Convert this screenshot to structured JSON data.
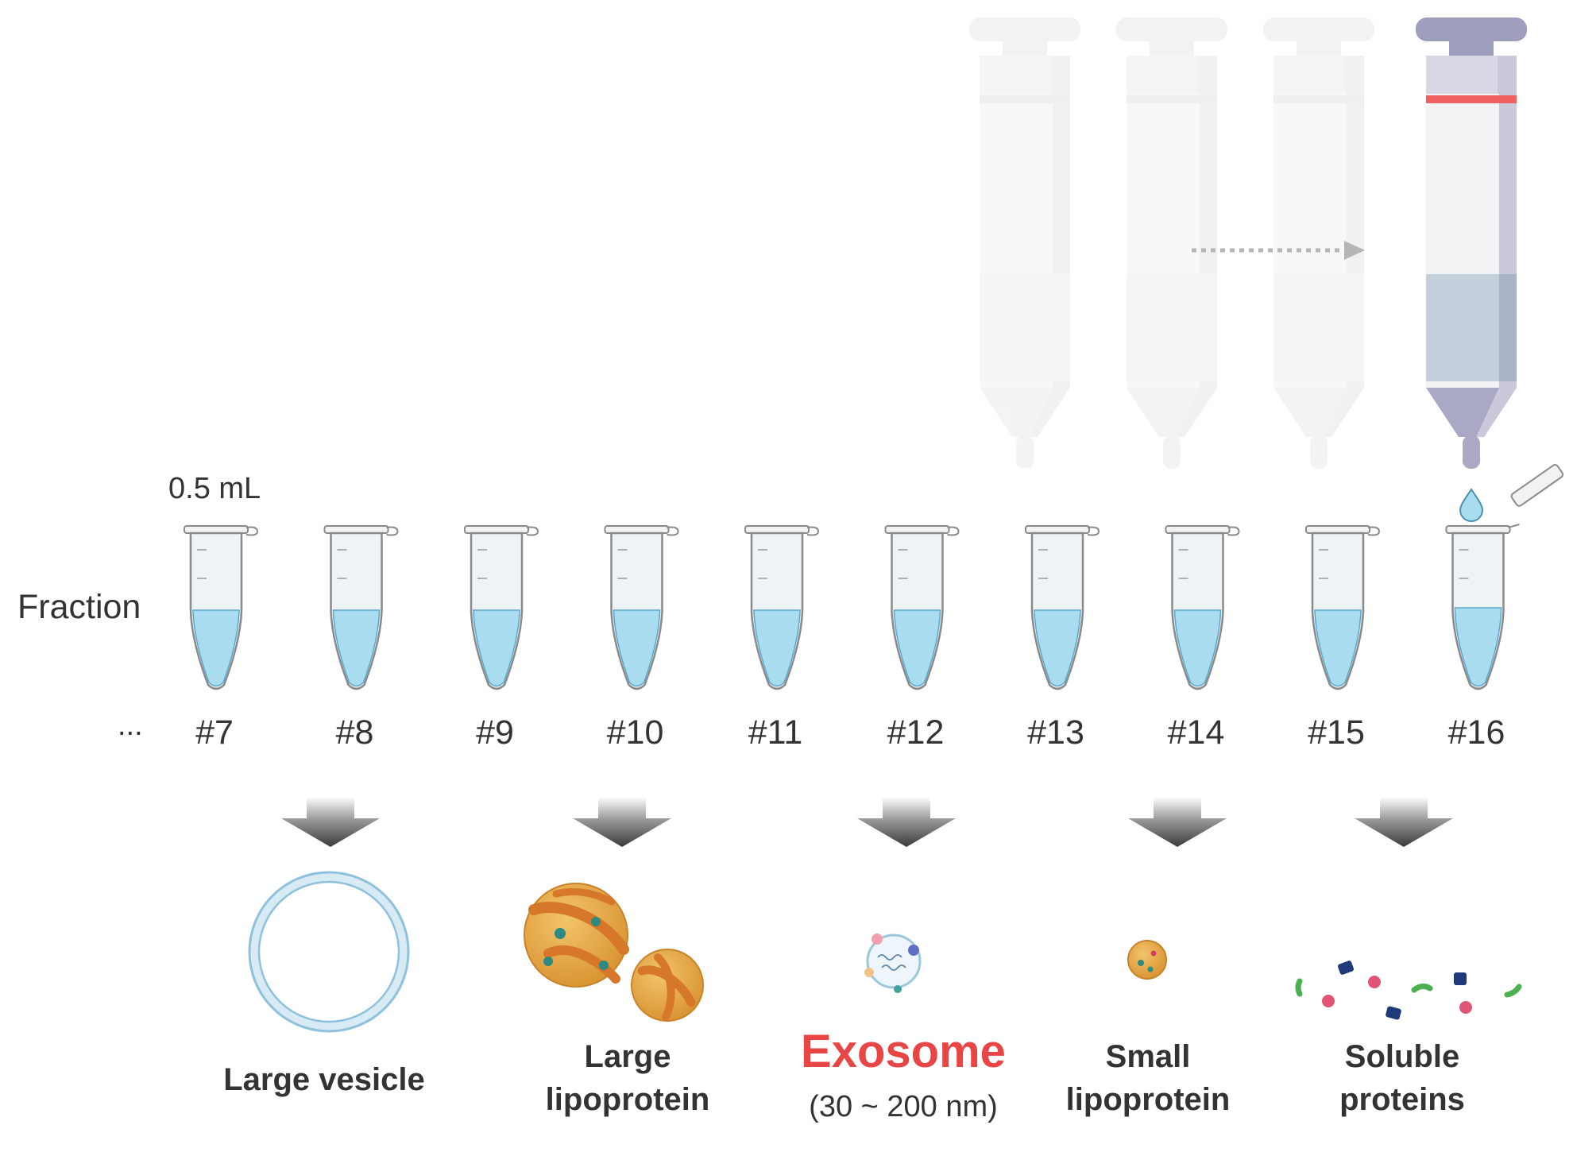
{
  "volume_label": "0.5 mL",
  "fraction_label": "Fraction",
  "ellipsis": "...",
  "fractions": [
    "#7",
    "#8",
    "#9",
    "#10",
    "#11",
    "#12",
    "#13",
    "#14",
    "#15",
    "#16"
  ],
  "active_fraction": "#16",
  "colors": {
    "liquid": "#a9dcef",
    "column_active": "#a9a9c6",
    "column_band": "#f06060",
    "arrow": "#444444",
    "exosome_text": "#e84545",
    "lipoprotein": "#e6a338",
    "lipoprotein_stripe": "#d7772a"
  },
  "products": [
    {
      "lines": [
        "Large vesicle"
      ],
      "icon": "large-vesicle-icon"
    },
    {
      "lines": [
        "Large",
        "lipoprotein"
      ],
      "icon": "large-lipoprotein-icon"
    },
    {
      "lines": [
        "Exosome"
      ],
      "sub": "(30 ~ 200 nm)",
      "icon": "exosome-icon",
      "highlight": true
    },
    {
      "lines": [
        "Small",
        "lipoprotein"
      ],
      "icon": "small-lipoprotein-icon"
    },
    {
      "lines": [
        "Soluble",
        "proteins"
      ],
      "icon": "soluble-proteins-icon"
    }
  ]
}
